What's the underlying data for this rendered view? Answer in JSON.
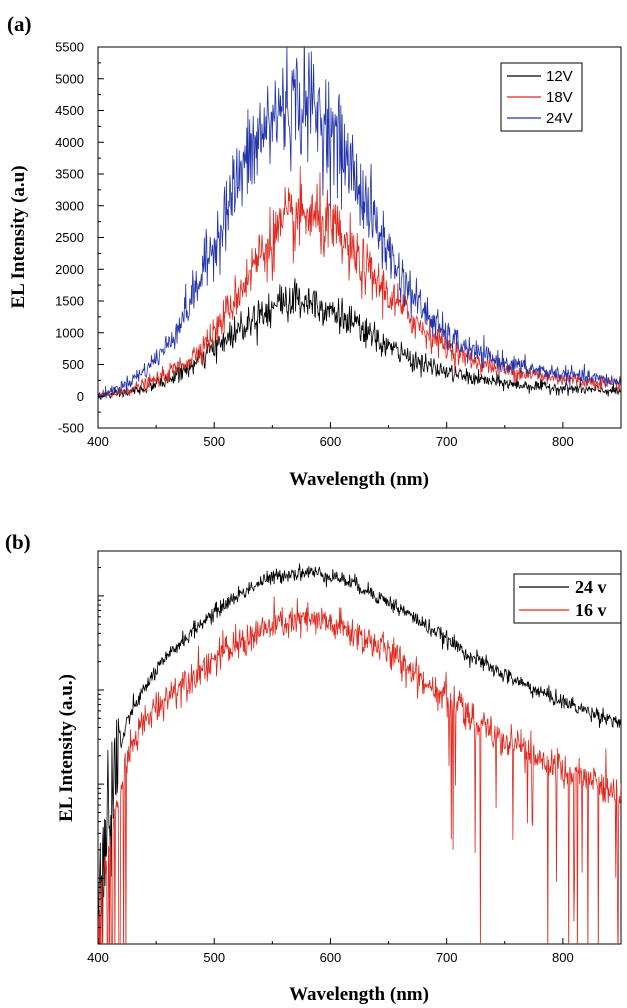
{
  "chart_data": [
    {
      "panel_label": "(a)",
      "type": "line",
      "xlabel": "Wavelength (nm)",
      "ylabel": "EL Intensity (a.u)",
      "xlim": [
        400,
        850
      ],
      "ylim": [
        -500,
        5500
      ],
      "y_scale": "linear",
      "x_ticks": [
        400,
        500,
        600,
        700,
        800
      ],
      "y_ticks": [
        -500,
        0,
        500,
        1000,
        1500,
        2000,
        2500,
        3000,
        3500,
        4000,
        4500,
        5000,
        5500
      ],
      "legend_position": "top-right",
      "series": [
        {
          "name": "12V",
          "color": "#000000",
          "x": [
            400,
            420,
            440,
            460,
            480,
            500,
            520,
            540,
            560,
            580,
            600,
            620,
            640,
            660,
            680,
            700,
            720,
            740,
            760,
            780,
            800,
            820,
            850
          ],
          "values": [
            0,
            40,
            120,
            260,
            460,
            750,
            1050,
            1330,
            1500,
            1530,
            1380,
            1120,
            880,
            680,
            500,
            380,
            290,
            230,
            180,
            150,
            130,
            100,
            80
          ]
        },
        {
          "name": "18V",
          "color": "#e0281e",
          "x": [
            400,
            420,
            440,
            460,
            480,
            500,
            520,
            540,
            560,
            580,
            600,
            620,
            640,
            660,
            680,
            700,
            720,
            740,
            760,
            780,
            800,
            820,
            850
          ],
          "values": [
            0,
            60,
            180,
            350,
            600,
            1000,
            1600,
            2250,
            2700,
            2850,
            2650,
            2200,
            1800,
            1400,
            1050,
            780,
            580,
            460,
            380,
            320,
            280,
            240,
            200
          ]
        },
        {
          "name": "24V",
          "color": "#2233a8",
          "x": [
            400,
            420,
            440,
            460,
            480,
            500,
            520,
            540,
            560,
            580,
            600,
            620,
            640,
            660,
            680,
            700,
            720,
            740,
            760,
            780,
            800,
            820,
            850
          ],
          "values": [
            0,
            150,
            400,
            800,
            1500,
            2400,
            3400,
            4100,
            4600,
            4650,
            4200,
            3500,
            2650,
            1900,
            1350,
            950,
            720,
            580,
            480,
            400,
            350,
            300,
            220
          ]
        }
      ]
    },
    {
      "panel_label": "(b)",
      "type": "line",
      "xlabel": "Wavelength (nm)",
      "ylabel": "EL Intensity (a.u.)",
      "xlim": [
        400,
        850
      ],
      "y_scale": "log",
      "y_tick_labels_shown": false,
      "x_ticks": [
        400,
        500,
        600,
        700,
        800
      ],
      "legend_position": "top-right",
      "series": [
        {
          "name": "24 v",
          "color": "#000000",
          "x": [
            400,
            410,
            420,
            440,
            460,
            480,
            500,
            520,
            540,
            560,
            580,
            600,
            620,
            640,
            660,
            680,
            700,
            720,
            740,
            760,
            780,
            800,
            820,
            840,
            850
          ],
          "values": [
            0.003,
            0.04,
            0.25,
            1.0,
            2.2,
            4.0,
            6.5,
            10,
            14,
            17,
            18,
            16.5,
            13.5,
            10,
            7.2,
            5.0,
            3.4,
            2.3,
            1.65,
            1.25,
            0.95,
            0.75,
            0.6,
            0.5,
            0.45
          ]
        },
        {
          "name": "16 v",
          "color": "#e0281e",
          "x": [
            400,
            410,
            420,
            440,
            460,
            480,
            500,
            520,
            540,
            560,
            580,
            600,
            620,
            640,
            660,
            680,
            700,
            720,
            740,
            760,
            780,
            800,
            820,
            840,
            850
          ],
          "values": [
            0.002,
            0.02,
            0.08,
            0.45,
            0.85,
            1.4,
            2.1,
            3.0,
            4.2,
            5.2,
            5.5,
            5.0,
            4.0,
            3.0,
            2.0,
            1.3,
            0.8,
            0.5,
            0.33,
            0.24,
            0.18,
            0.14,
            0.11,
            0.09,
            0.08
          ]
        }
      ]
    }
  ]
}
